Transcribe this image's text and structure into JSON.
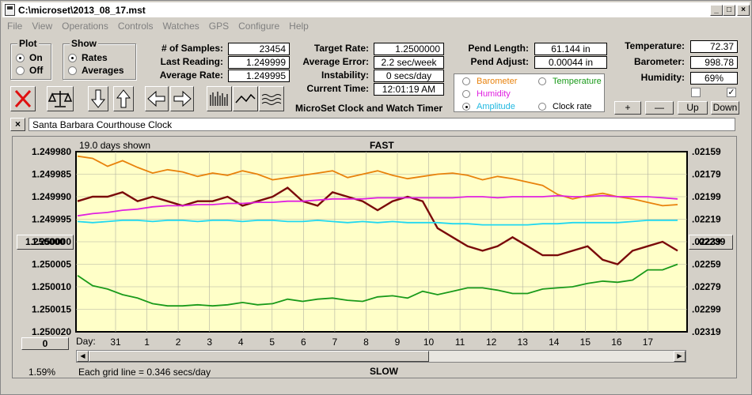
{
  "window": {
    "title": "C:\\microset\\2013_08_17.mst"
  },
  "menu": [
    "File",
    "View",
    "Operations",
    "Controls",
    "Watches",
    "GPS",
    "Configure",
    "Help"
  ],
  "plot_group": {
    "title": "Plot",
    "on": "On",
    "off": "Off",
    "selected": "On"
  },
  "show_group": {
    "title": "Show",
    "rates": "Rates",
    "averages": "Averages",
    "selected": "Rates"
  },
  "stats": {
    "samples_label": "# of Samples:",
    "samples": "23454",
    "last_label": "Last Reading:",
    "last": "1.249999",
    "avg_label": "Average Rate:",
    "avg": "1.249995"
  },
  "target": {
    "target_label": "Target Rate:",
    "target": "1.2500000",
    "error_label": "Average Error:",
    "error": "2.2 sec/week",
    "instab_label": "Instability:",
    "instab": "0 secs/day",
    "time_label": "Current Time:",
    "time": "12:01:19 AM",
    "app_name": "MicroSet Clock and Watch Timer"
  },
  "pend": {
    "length_label": "Pend Length:",
    "length": "61.144 in",
    "adjust_label": "Pend Adjust:",
    "adjust": "0.00044 in"
  },
  "env": {
    "temp_label": "Temperature:",
    "temp": "72.37",
    "baro_label": "Barometer:",
    "baro": "998.78",
    "hum_label": "Humidity:",
    "hum": "69%"
  },
  "options": {
    "barometer": "Barometer",
    "temperature": "Temperature",
    "humidity": "Humidity",
    "amplitude": "Amplitude",
    "clock_rate": "Clock rate",
    "selected": "Amplitude"
  },
  "colors": {
    "barometer": "#e8820c",
    "temperature": "#1a9a1a",
    "humidity": "#e020e0",
    "amplitude": "#20d8f0",
    "rate": "#7a0a0a",
    "plot_bg": "#ffffc8"
  },
  "buttons": {
    "plus": "+",
    "minus": "—",
    "up": "Up",
    "down": "Down",
    "close_x": "×"
  },
  "clock_name": "Santa Barbara Courthouse Clock",
  "chart": {
    "days_shown": "19.0 days shown",
    "fast": "FAST",
    "slow": "SLOW",
    "grid_note": "Each grid line = 0.346 secs/day",
    "percent": "1.59%",
    "day_label": "Day:",
    "left_ticks": [
      "1.249980",
      "1.249985",
      "1.249990",
      "1.249995",
      "1.250000",
      "1.250005",
      "1.250010",
      "1.250015",
      "1.250020"
    ],
    "right_ticks": [
      ".02159",
      ".02179",
      ".02199",
      ".02219",
      ".02239",
      ".02259",
      ".02279",
      ".02299",
      ".02319"
    ],
    "left_button": "1.250000",
    "right_button": ".02239",
    "bottom_button": "0"
  },
  "chart_data": {
    "type": "line",
    "xlabel": "Day:",
    "x_ticks": [
      "31",
      "1",
      "2",
      "3",
      "4",
      "5",
      "6",
      "7",
      "8",
      "9",
      "10",
      "11",
      "12",
      "13",
      "14",
      "15",
      "16",
      "17"
    ],
    "ylim": [
      1.24998,
      1.25002
    ],
    "y_inverted": true,
    "y2lim": [
      0.02159,
      0.02319
    ],
    "series": [
      {
        "key": "rate",
        "values": [
          1.249991,
          1.24999,
          1.24999,
          1.249989,
          1.249991,
          1.24999,
          1.249991,
          1.249992,
          1.249991,
          1.249991,
          1.24999,
          1.249992,
          1.249991,
          1.24999,
          1.249988,
          1.249991,
          1.249992,
          1.249989,
          1.24999,
          1.249991,
          1.249993,
          1.249991,
          1.24999,
          1.249991,
          1.249997,
          1.249999,
          1.250001,
          1.250002,
          1.250001,
          1.249999,
          1.250001,
          1.250003,
          1.250003,
          1.250002,
          1.250001,
          1.250004,
          1.250005,
          1.250002,
          1.250001,
          1.25,
          1.250002
        ]
      },
      {
        "key": "barometer",
        "values": [
          0.02163,
          0.02165,
          0.02172,
          0.02167,
          0.02173,
          0.02178,
          0.02175,
          0.02177,
          0.02181,
          0.02178,
          0.0218,
          0.02176,
          0.02179,
          0.02184,
          0.02182,
          0.0218,
          0.02178,
          0.02176,
          0.02182,
          0.02179,
          0.02176,
          0.0218,
          0.02183,
          0.02181,
          0.02179,
          0.02178,
          0.0218,
          0.02184,
          0.02181,
          0.02183,
          0.02186,
          0.02189,
          0.02197,
          0.02201,
          0.02198,
          0.02196,
          0.02199,
          0.02201,
          0.02204,
          0.02207,
          0.02206
        ]
      },
      {
        "key": "humidity",
        "values": [
          0.02216,
          0.02214,
          0.02213,
          0.02211,
          0.0221,
          0.02208,
          0.02207,
          0.02207,
          0.02206,
          0.02206,
          0.02205,
          0.02205,
          0.02204,
          0.02204,
          0.02203,
          0.02203,
          0.02202,
          0.02201,
          0.02201,
          0.02201,
          0.022,
          0.022,
          0.022,
          0.022,
          0.022,
          0.022,
          0.02199,
          0.02199,
          0.022,
          0.02199,
          0.02199,
          0.02199,
          0.02198,
          0.02199,
          0.02199,
          0.02198,
          0.02199,
          0.02199,
          0.02199,
          0.022,
          0.02201
        ]
      },
      {
        "key": "amplitude",
        "values": [
          0.02221,
          0.02222,
          0.02221,
          0.0222,
          0.0222,
          0.02221,
          0.0222,
          0.0222,
          0.02221,
          0.0222,
          0.0222,
          0.02221,
          0.0222,
          0.0222,
          0.02221,
          0.02221,
          0.0222,
          0.02221,
          0.02222,
          0.02221,
          0.02222,
          0.02221,
          0.02222,
          0.02222,
          0.02222,
          0.02223,
          0.02223,
          0.02224,
          0.02224,
          0.02224,
          0.02224,
          0.02223,
          0.02223,
          0.02222,
          0.02222,
          0.02222,
          0.02222,
          0.02221,
          0.0222,
          0.0222,
          0.0222
        ]
      },
      {
        "key": "temperature",
        "values": [
          0.02269,
          0.02278,
          0.02281,
          0.02286,
          0.02289,
          0.02294,
          0.02296,
          0.02296,
          0.02295,
          0.02296,
          0.02295,
          0.02293,
          0.02295,
          0.02294,
          0.0229,
          0.02292,
          0.0229,
          0.02289,
          0.02291,
          0.02292,
          0.02288,
          0.02287,
          0.02289,
          0.02283,
          0.02286,
          0.02283,
          0.0228,
          0.0228,
          0.02282,
          0.02285,
          0.02285,
          0.02281,
          0.0228,
          0.02279,
          0.02276,
          0.02274,
          0.02275,
          0.02273,
          0.02264,
          0.02264,
          0.02259
        ]
      }
    ],
    "grid": true
  }
}
